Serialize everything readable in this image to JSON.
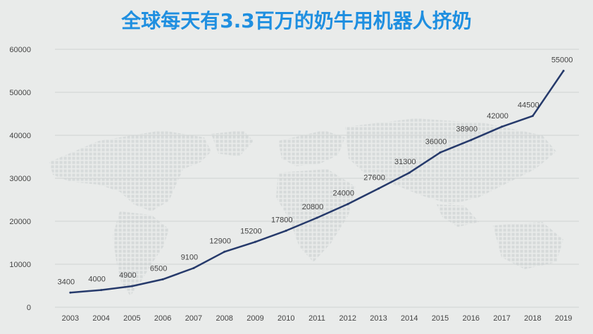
{
  "title": "全球每天有3.3百万的奶牛用机器人挤奶",
  "colors": {
    "background": "#e9ebea",
    "title": "#1f8fe0",
    "line": "#263a6b",
    "grid": "#cfd3d3",
    "text": "#444444",
    "map_dots": "#d7dbdb"
  },
  "chart_data": {
    "type": "line",
    "categories": [
      "2003",
      "2004",
      "2005",
      "2006",
      "2007",
      "2008",
      "2009",
      "2010",
      "2011",
      "2012",
      "2013",
      "2014",
      "2015",
      "2016",
      "2017",
      "2018",
      "2019"
    ],
    "series": [
      {
        "values": [
          3400,
          4000,
          4900,
          6500,
          9100,
          12900,
          15200,
          17800,
          20800,
          24000,
          27600,
          31300,
          36000,
          38900,
          42000,
          44500,
          55000
        ]
      }
    ],
    "ylim": [
      0,
      60000
    ],
    "yticks": [
      0,
      10000,
      20000,
      30000,
      40000,
      50000,
      60000
    ],
    "grid": true,
    "data_labels": true
  }
}
